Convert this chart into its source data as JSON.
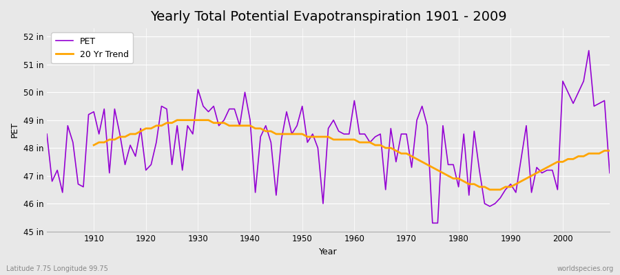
{
  "title": "Yearly Total Potential Evapotranspiration 1901 - 2009",
  "xlabel": "Year",
  "ylabel": "PET",
  "bottom_left_label": "Latitude 7.75 Longitude 99.75",
  "bottom_right_label": "worldspecies.org",
  "pet_color": "#9400D3",
  "trend_color": "#FFA500",
  "background_color": "#E8E8E8",
  "grid_color": "#FFFFFF",
  "ylim": [
    45,
    52.3
  ],
  "yticks": [
    45,
    46,
    47,
    48,
    49,
    50,
    51,
    52
  ],
  "ytick_labels": [
    "45 in",
    "46 in",
    "47 in",
    "48 in",
    "49 in",
    "50 in",
    "51 in",
    "52 in"
  ],
  "years": [
    1901,
    1902,
    1903,
    1904,
    1905,
    1906,
    1907,
    1908,
    1909,
    1910,
    1911,
    1912,
    1913,
    1914,
    1915,
    1916,
    1917,
    1918,
    1919,
    1920,
    1921,
    1922,
    1923,
    1924,
    1925,
    1926,
    1927,
    1928,
    1929,
    1930,
    1931,
    1932,
    1933,
    1934,
    1935,
    1936,
    1937,
    1938,
    1939,
    1940,
    1941,
    1942,
    1943,
    1944,
    1945,
    1946,
    1947,
    1948,
    1949,
    1950,
    1951,
    1952,
    1953,
    1954,
    1955,
    1956,
    1957,
    1958,
    1959,
    1960,
    1961,
    1962,
    1963,
    1964,
    1965,
    1966,
    1967,
    1968,
    1969,
    1970,
    1971,
    1972,
    1973,
    1974,
    1975,
    1976,
    1977,
    1978,
    1979,
    1980,
    1981,
    1982,
    1983,
    1984,
    1985,
    1986,
    1987,
    1988,
    1989,
    1990,
    1991,
    1992,
    1993,
    1994,
    1995,
    1996,
    1997,
    1998,
    1999,
    2000,
    2001,
    2002,
    2003,
    2004,
    2005,
    2006,
    2007,
    2008,
    2009
  ],
  "pet_values": [
    48.5,
    46.8,
    47.2,
    46.4,
    48.8,
    48.2,
    46.7,
    46.6,
    49.2,
    49.3,
    48.5,
    49.4,
    47.1,
    49.4,
    48.5,
    47.4,
    48.1,
    47.7,
    48.7,
    47.2,
    47.4,
    48.2,
    49.5,
    49.4,
    47.4,
    48.8,
    47.2,
    48.8,
    48.5,
    50.1,
    49.5,
    49.3,
    49.5,
    48.8,
    49.0,
    49.4,
    49.4,
    48.8,
    50.0,
    49.0,
    46.4,
    48.4,
    48.8,
    48.2,
    46.3,
    48.3,
    49.3,
    48.5,
    48.8,
    49.5,
    48.2,
    48.5,
    48.0,
    46.0,
    48.7,
    49.0,
    48.6,
    48.5,
    48.5,
    49.7,
    48.5,
    48.5,
    48.2,
    48.4,
    48.5,
    46.5,
    48.7,
    47.5,
    48.5,
    48.5,
    47.3,
    49.0,
    49.5,
    48.8,
    45.3,
    45.3,
    48.8,
    47.4,
    47.4,
    46.6,
    48.5,
    46.3,
    48.6,
    47.2,
    46.0,
    45.9,
    46.0,
    46.2,
    46.5,
    46.7,
    46.4,
    47.6,
    48.8,
    46.4,
    47.3,
    47.1,
    47.2,
    47.2,
    46.5,
    50.4,
    50.0,
    49.6,
    50.0,
    50.4,
    51.5,
    49.5,
    49.6,
    49.7,
    47.1
  ],
  "trend_values": [
    null,
    null,
    null,
    null,
    null,
    null,
    null,
    null,
    null,
    48.1,
    48.2,
    48.2,
    48.3,
    48.3,
    48.4,
    48.4,
    48.5,
    48.5,
    48.6,
    48.7,
    48.7,
    48.8,
    48.8,
    48.9,
    48.9,
    49.0,
    49.0,
    49.0,
    49.0,
    49.0,
    49.0,
    49.0,
    48.9,
    48.9,
    48.9,
    48.8,
    48.8,
    48.8,
    48.8,
    48.8,
    48.7,
    48.7,
    48.6,
    48.6,
    48.5,
    48.5,
    48.5,
    48.5,
    48.5,
    48.5,
    48.4,
    48.4,
    48.4,
    48.4,
    48.4,
    48.3,
    48.3,
    48.3,
    48.3,
    48.3,
    48.2,
    48.2,
    48.2,
    48.1,
    48.1,
    48.0,
    48.0,
    47.9,
    47.8,
    47.8,
    47.7,
    47.6,
    47.5,
    47.4,
    47.3,
    47.2,
    47.1,
    47.0,
    46.9,
    46.9,
    46.8,
    46.7,
    46.7,
    46.6,
    46.6,
    46.5,
    46.5,
    46.5,
    46.6,
    46.6,
    46.7,
    46.8,
    46.9,
    47.0,
    47.1,
    47.2,
    47.3,
    47.4,
    47.5,
    47.5,
    47.6,
    47.6,
    47.7,
    47.7,
    47.8,
    47.8,
    47.8,
    47.9,
    47.9
  ],
  "xtick_positions": [
    1910,
    1920,
    1930,
    1940,
    1950,
    1960,
    1970,
    1980,
    1990,
    2000
  ],
  "pet_linewidth": 1.2,
  "trend_linewidth": 2.0,
  "title_fontsize": 14,
  "label_fontsize": 9,
  "tick_fontsize": 8.5
}
